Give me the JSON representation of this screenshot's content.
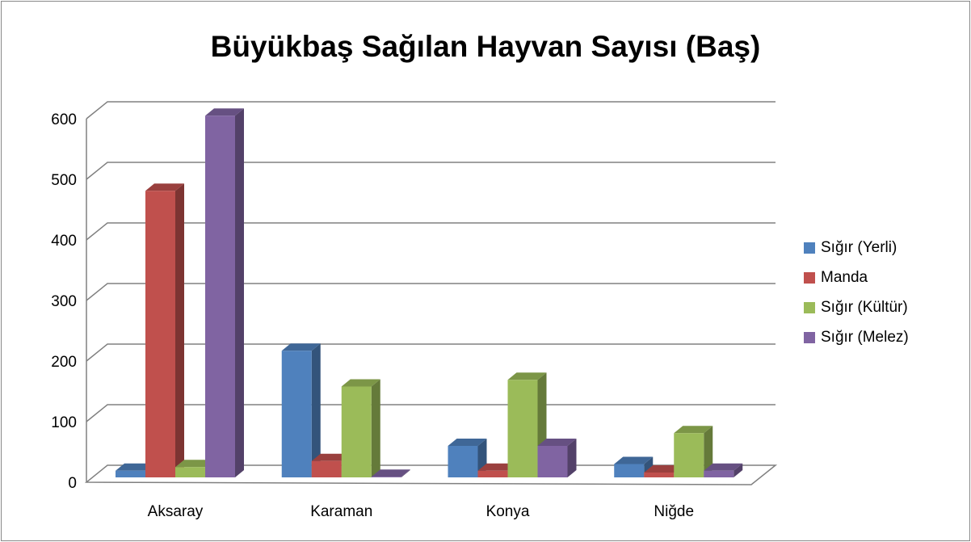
{
  "chart_data": {
    "type": "bar3d",
    "title": "Büyükbaş Sağılan Hayvan Sayısı (Baş)",
    "categories": [
      "Aksaray",
      "Karaman",
      "Konya",
      "Niğde"
    ],
    "series": [
      {
        "name": "Sığır (Yerli)",
        "color": "#4f81bd",
        "values": [
          11,
          209,
          52,
          22
        ]
      },
      {
        "name": "Manda",
        "color": "#c0504d",
        "values": [
          473,
          27,
          11,
          8
        ]
      },
      {
        "name": "Sığır (Kültür)",
        "color": "#9bbb59",
        "values": [
          17,
          150,
          161,
          73
        ]
      },
      {
        "name": "Sığır (Melez)",
        "color": "#8064a2",
        "values": [
          597,
          1,
          52,
          11
        ]
      }
    ],
    "ylim": [
      0,
      600
    ],
    "yticks": [
      0,
      100,
      200,
      300,
      400,
      500,
      600
    ],
    "grid": true,
    "legend": "right"
  }
}
